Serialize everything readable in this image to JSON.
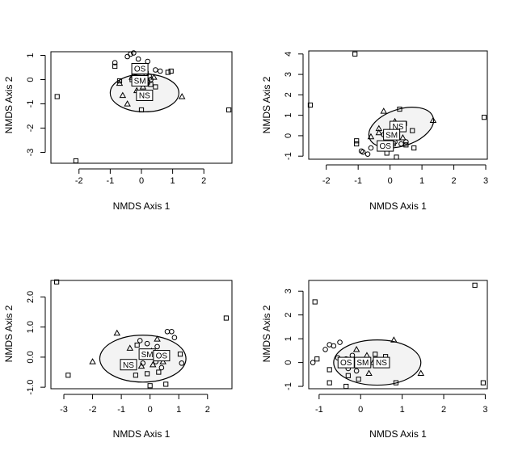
{
  "chart_data": [
    {
      "type": "scatter",
      "xlabel": "NMDS Axis 1",
      "ylabel": "NMDS Axis 2",
      "xlim": [
        -2.9,
        2.9
      ],
      "ylim": [
        -3.45,
        1.15
      ],
      "xticks": [
        -2,
        -1,
        0,
        1,
        2
      ],
      "yticks": [
        -3,
        -2,
        -1,
        0,
        1
      ],
      "points": {
        "circle": [
          [
            -0.45,
            0.95
          ],
          [
            -0.35,
            1.05
          ],
          [
            -0.25,
            1.1
          ],
          [
            -0.85,
            0.7
          ],
          [
            -0.1,
            0.85
          ],
          [
            0.2,
            0.75
          ],
          [
            0.6,
            0.35
          ],
          [
            0.45,
            0.4
          ],
          [
            0.25,
            0.15
          ],
          [
            0.3,
            0.0
          ]
        ],
        "square": [
          [
            -2.7,
            -0.7
          ],
          [
            2.8,
            -1.25
          ],
          [
            -2.1,
            -3.35
          ],
          [
            -0.85,
            0.55
          ],
          [
            -0.7,
            -0.05
          ],
          [
            0.0,
            -1.25
          ],
          [
            0.45,
            -0.3
          ],
          [
            0.05,
            0.5
          ],
          [
            -0.3,
            0.0
          ],
          [
            0.15,
            0.25
          ],
          [
            0.95,
            0.35
          ],
          [
            0.2,
            -0.1
          ],
          [
            0.85,
            0.3
          ],
          [
            0.3,
            -0.2
          ]
        ],
        "triangle": [
          [
            -0.7,
            -0.15
          ],
          [
            -0.6,
            -0.65
          ],
          [
            -0.45,
            -1.0
          ],
          [
            -0.3,
            0.1
          ],
          [
            -0.15,
            -0.45
          ],
          [
            0.05,
            -0.3
          ],
          [
            1.3,
            -0.7
          ],
          [
            0.4,
            0.1
          ],
          [
            -0.05,
            0.05
          ],
          [
            -0.25,
            0.2
          ]
        ]
      },
      "centroids": [
        {
          "label": "OS",
          "x": -0.05,
          "y": 0.45
        },
        {
          "label": "SM",
          "x": -0.05,
          "y": -0.05
        },
        {
          "label": "NS",
          "x": 0.1,
          "y": -0.65
        }
      ],
      "ellipse": {
        "cx": 0.1,
        "cy": -0.55,
        "rx": 1.1,
        "ry": 0.78
      }
    },
    {
      "type": "scatter",
      "xlabel": "NMDS Axis 1",
      "ylabel": "NMDS Axis 2",
      "xlim": [
        -2.55,
        3.05
      ],
      "ylim": [
        -1.15,
        4.15
      ],
      "xticks": [
        -2,
        -1,
        0,
        1,
        2,
        3
      ],
      "yticks": [
        -1,
        0,
        1,
        2,
        3,
        4
      ],
      "points": {
        "circle": [
          [
            -0.85,
            -0.8
          ],
          [
            -0.7,
            -0.9
          ],
          [
            -0.9,
            -0.75
          ],
          [
            -0.6,
            -0.6
          ],
          [
            -0.2,
            0.05
          ],
          [
            0.0,
            0.2
          ],
          [
            0.15,
            -0.3
          ],
          [
            0.35,
            -0.4
          ],
          [
            0.5,
            -0.3
          ]
        ],
        "square": [
          [
            -1.1,
            4.0
          ],
          [
            -2.5,
            1.5
          ],
          [
            2.95,
            0.9
          ],
          [
            -1.05,
            -0.25
          ],
          [
            -1.05,
            -0.4
          ],
          [
            0.3,
            1.3
          ],
          [
            0.7,
            0.25
          ],
          [
            0.2,
            -1.05
          ],
          [
            -0.1,
            -0.85
          ],
          [
            0.75,
            -0.6
          ],
          [
            0.5,
            -0.45
          ],
          [
            0.1,
            -0.4
          ],
          [
            0.45,
            0.6
          ]
        ],
        "triangle": [
          [
            -0.35,
            0.35
          ],
          [
            -0.2,
            1.2
          ],
          [
            0.15,
            0.7
          ],
          [
            -0.1,
            0.1
          ],
          [
            0.4,
            -0.1
          ],
          [
            1.35,
            0.75
          ],
          [
            -0.6,
            -0.05
          ],
          [
            -0.35,
            0.15
          ]
        ]
      },
      "centroids": [
        {
          "label": "NS",
          "x": 0.25,
          "y": 0.45
        },
        {
          "label": "SM",
          "x": 0.05,
          "y": 0.05
        },
        {
          "label": "OS",
          "x": -0.15,
          "y": -0.5
        }
      ],
      "ellipse": {
        "cx": 0.35,
        "cy": 0.4,
        "rx": 1.05,
        "ry": 0.9,
        "angle": -18
      }
    },
    {
      "type": "scatter",
      "xlabel": "NMDS Axis 1",
      "ylabel": "NMDS Axis 2",
      "xlim": [
        -3.45,
        2.85
      ],
      "ylim": [
        -1.05,
        2.55
      ],
      "xticks": [
        -3,
        -2,
        -1,
        0,
        1,
        2
      ],
      "yticks": [
        -1.0,
        0.0,
        1.0,
        2.0
      ],
      "ytick_labels": [
        "-1.0",
        "0.0",
        "1.0",
        "2.0"
      ],
      "points": {
        "circle": [
          [
            -0.1,
            0.45
          ],
          [
            -0.35,
            0.55
          ],
          [
            0.25,
            0.35
          ],
          [
            0.6,
            0.85
          ],
          [
            0.75,
            0.85
          ],
          [
            0.85,
            0.65
          ],
          [
            0.45,
            0.1
          ],
          [
            1.1,
            -0.2
          ],
          [
            0.2,
            -0.15
          ],
          [
            -0.25,
            -0.2
          ],
          [
            0.4,
            -0.35
          ]
        ],
        "square": [
          [
            -3.25,
            2.5
          ],
          [
            2.65,
            1.3
          ],
          [
            -2.85,
            -0.6
          ],
          [
            0.3,
            -0.5
          ],
          [
            -0.1,
            -0.55
          ],
          [
            -0.5,
            -0.6
          ],
          [
            0.0,
            -0.95
          ],
          [
            0.55,
            -0.9
          ],
          [
            1.05,
            0.1
          ],
          [
            -0.45,
            0.4
          ]
        ],
        "triangle": [
          [
            -1.15,
            0.8
          ],
          [
            -2.0,
            -0.15
          ],
          [
            -0.85,
            -0.25
          ],
          [
            -0.7,
            0.3
          ],
          [
            0.05,
            0.2
          ],
          [
            0.25,
            0.6
          ],
          [
            -0.15,
            0.05
          ],
          [
            0.45,
            -0.15
          ],
          [
            -0.3,
            -0.3
          ],
          [
            0.1,
            -0.25
          ]
        ]
      },
      "centroids": [
        {
          "label": "NS",
          "x": -0.75,
          "y": -0.25
        },
        {
          "label": "SM",
          "x": -0.1,
          "y": 0.1
        },
        {
          "label": "OS",
          "x": 0.4,
          "y": 0.05
        }
      ],
      "ellipse": {
        "cx": -0.25,
        "cy": -0.05,
        "rx": 1.5,
        "ry": 0.78
      }
    },
    {
      "type": "scatter",
      "xlabel": "NMDS Axis 1",
      "ylabel": "NMDS Axis 2",
      "xlim": [
        -1.25,
        3.05
      ],
      "ylim": [
        -1.1,
        3.45
      ],
      "xticks": [
        -1,
        0,
        1,
        2,
        3
      ],
      "yticks": [
        -1,
        0,
        1,
        2,
        3
      ],
      "points": {
        "circle": [
          [
            -1.15,
            0.0
          ],
          [
            -0.85,
            0.55
          ],
          [
            -0.65,
            0.7
          ],
          [
            -0.75,
            0.75
          ],
          [
            -0.5,
            0.85
          ],
          [
            -0.35,
            0.15
          ],
          [
            -0.2,
            0.3
          ],
          [
            -0.55,
            0.2
          ],
          [
            0.05,
            0.1
          ],
          [
            -0.3,
            -0.25
          ],
          [
            -0.1,
            -0.35
          ],
          [
            0.1,
            -0.1
          ]
        ],
        "square": [
          [
            -1.1,
            2.55
          ],
          [
            2.75,
            3.25
          ],
          [
            2.95,
            -0.85
          ],
          [
            -0.75,
            -0.85
          ],
          [
            -0.3,
            -0.55
          ],
          [
            0.85,
            -0.85
          ],
          [
            0.35,
            0.35
          ],
          [
            0.6,
            0.25
          ],
          [
            -0.35,
            -1.0
          ],
          [
            -0.05,
            -0.7
          ],
          [
            -1.05,
            0.15
          ],
          [
            -0.75,
            -0.3
          ]
        ],
        "triangle": [
          [
            0.15,
            0.3
          ],
          [
            0.2,
            -0.45
          ],
          [
            0.8,
            0.95
          ],
          [
            1.45,
            -0.45
          ],
          [
            -0.1,
            0.55
          ],
          [
            0.3,
            0.0
          ],
          [
            0.6,
            -0.1
          ]
        ]
      },
      "centroids": [
        {
          "label": "OS",
          "x": -0.35,
          "y": 0.0
        },
        {
          "label": "SM",
          "x": 0.05,
          "y": 0.0
        },
        {
          "label": "NS",
          "x": 0.5,
          "y": 0.0
        }
      ],
      "ellipse": {
        "cx": 0.4,
        "cy": 0.0,
        "rx": 1.05,
        "ry": 0.95
      }
    }
  ]
}
